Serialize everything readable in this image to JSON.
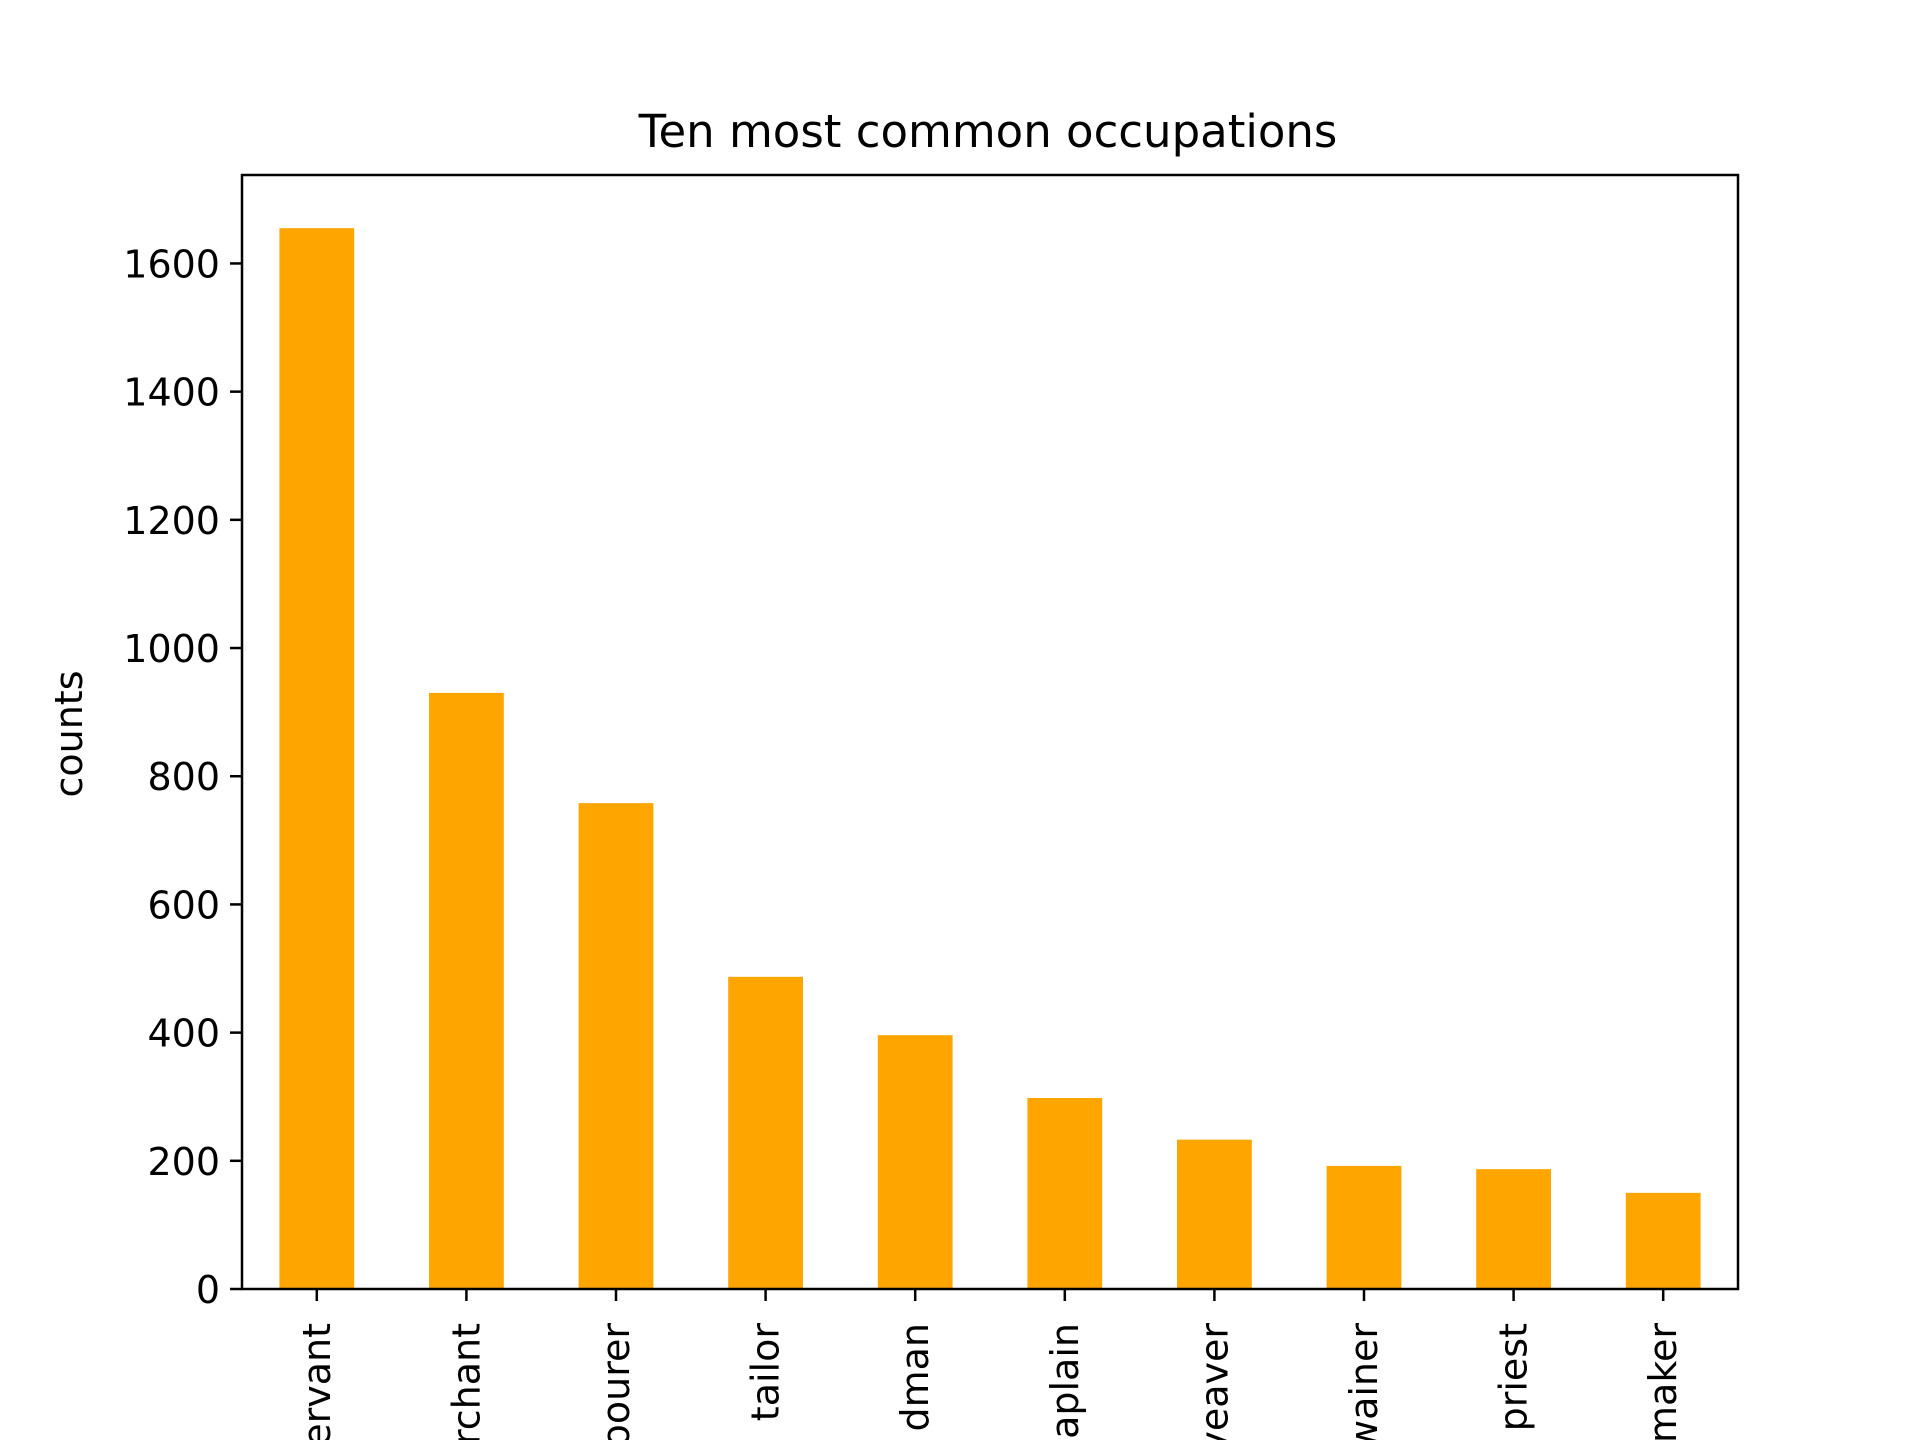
{
  "chart_data": {
    "type": "bar",
    "title": "Ten most common occupations",
    "xlabel": "",
    "ylabel": "counts",
    "categories": [
      "servant",
      "merchant",
      "labourer",
      "tailor",
      "husbandman",
      "chaplain",
      "weaver",
      "cordwainer",
      "priest",
      "shoemaker"
    ],
    "tick_labels_visible": [
      "ervant",
      "rchant",
      "oourer",
      "tailor",
      "dman",
      "aplain",
      "veaver",
      "wainer",
      "priest",
      "maker"
    ],
    "values": [
      1655,
      930,
      758,
      487,
      396,
      298,
      233,
      192,
      187,
      150
    ],
    "ylim": [
      0,
      1738
    ],
    "yticks": [
      0,
      200,
      400,
      600,
      800,
      1000,
      1200,
      1400,
      1600
    ],
    "grid": false,
    "legend": "none",
    "colors": {
      "bar": "#ffa500",
      "axis": "#000000",
      "background": "#ffffff"
    }
  }
}
